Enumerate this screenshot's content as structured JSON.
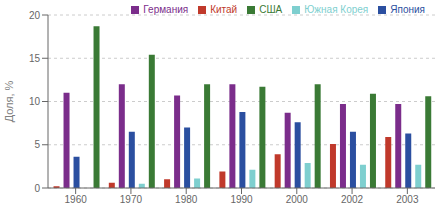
{
  "chart_data": {
    "type": "bar",
    "ylabel": "Доля, %",
    "categories": [
      "1960",
      "1970",
      "1980",
      "1990",
      "2000",
      "2002",
      "2003"
    ],
    "series": [
      {
        "name": "Китай",
        "color": "#c0392b",
        "values": [
          0.2,
          0.6,
          1.0,
          1.9,
          3.9,
          5.1,
          5.9
        ]
      },
      {
        "name": "Германия",
        "color": "#7b2d8b",
        "values": [
          11.0,
          12.0,
          10.7,
          12.0,
          8.7,
          9.7,
          9.7
        ]
      },
      {
        "name": "Япония",
        "color": "#2b4fa0",
        "values": [
          3.6,
          6.5,
          7.0,
          8.8,
          7.6,
          6.5,
          6.3
        ]
      },
      {
        "name": "Южная Корея",
        "color": "#7ecfcf",
        "values": [
          0.0,
          0.5,
          1.1,
          2.1,
          2.9,
          2.7,
          2.7
        ]
      },
      {
        "name": "США",
        "color": "#3a7a35",
        "values": [
          18.7,
          15.4,
          12.0,
          11.7,
          12.0,
          10.9,
          10.6
        ]
      }
    ],
    "ylim": [
      0,
      20
    ],
    "yticks": [
      0,
      5,
      10,
      15,
      20
    ],
    "grid": true,
    "legend": "upper right"
  }
}
